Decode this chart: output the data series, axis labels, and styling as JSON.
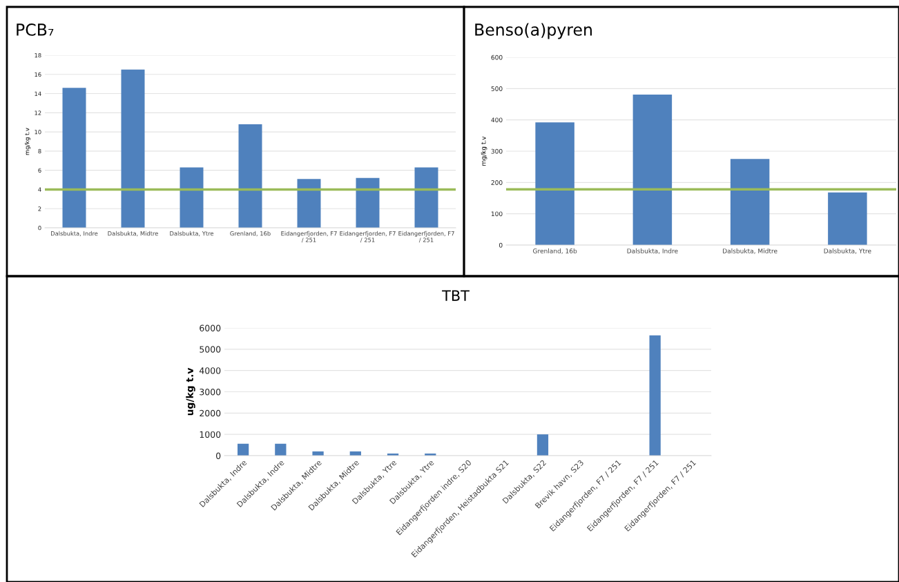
{
  "chart_data": [
    {
      "type": "bar",
      "title": "PCB₇",
      "ylabel": "mg/kg t.v",
      "categories": [
        "Dalsbukta, Indre",
        "Dalsbukta, Midtre",
        "Dalsbukta, Ytre",
        "Grenland, 16b",
        "Eidangerfjorden, F7 / 251",
        "Eidangerfjorden, F7 / 251",
        "Eidangerfjorden, F7 / 251"
      ],
      "values": [
        14.6,
        16.5,
        6.3,
        10.8,
        5.1,
        5.2,
        6.3
      ],
      "color": "#4f81bd",
      "ylim": [
        0,
        18
      ],
      "yticks": [
        0,
        2,
        4,
        6,
        8,
        10,
        12,
        14,
        16,
        18
      ],
      "grid": "y",
      "ref_lines": [
        {
          "axis": "y",
          "value": 4,
          "label": null,
          "color": "#9bbb59"
        }
      ]
    },
    {
      "type": "bar",
      "title": "Benso(a)pyren",
      "ylabel": "mg/kg t.v",
      "categories": [
        "Grenland, 16b",
        "Dalsbukta, Indre",
        "Dalsbukta, Midtre",
        "Dalsbukta, Ytre"
      ],
      "values": [
        392,
        481,
        275,
        168
      ],
      "color": "#4f81bd",
      "ylim": [
        0,
        600
      ],
      "yticks": [
        0,
        100,
        200,
        300,
        400,
        500,
        600
      ],
      "grid": "y",
      "ref_lines": [
        {
          "axis": "y",
          "value": 178,
          "label": null,
          "color": "#9bbb59"
        }
      ]
    },
    {
      "type": "bar",
      "title": "TBT",
      "ylabel": "ug/kg t.v",
      "categories": [
        "Dalsbukta, Indre",
        "Dalsbukta, Indre",
        "Dalsbukta, Midtre",
        "Dalsbukta, Midtre",
        "Dalsbukta, Ytre",
        "Dalsbukta, Ytre",
        "Eidangerfjorden indre, S20",
        "Eidangerfjorden, Heistadbukta S21",
        "Dalsbukta, S22",
        "Brevik havn, S23",
        "Eidangerfjorden, F7 / 251",
        "Eidangerfjorden, F7 / 251",
        "Eidangerfjorden, F7 / 251"
      ],
      "values": [
        560,
        560,
        200,
        200,
        100,
        100,
        null,
        null,
        1000,
        null,
        null,
        5650,
        null
      ],
      "color": "#4f81bd",
      "ylim": [
        0,
        6000
      ],
      "yticks": [
        0,
        1000,
        2000,
        3000,
        4000,
        5000,
        6000
      ],
      "grid": "y"
    }
  ]
}
